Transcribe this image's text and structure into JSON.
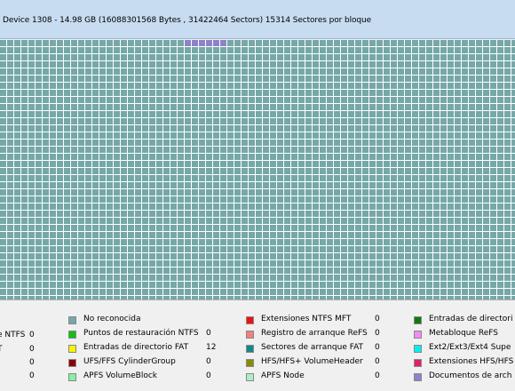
{
  "header": {
    "info": "Device 1308 - 14.98 GB (16088301568 Bytes , 31422464 Sectors) 15314 Sectores por bloque"
  },
  "map": {
    "default_color": "#76a8a8",
    "highlight_color": "#8b83c9",
    "highlight": {
      "row": 0,
      "col_start": 26,
      "col_end": 31
    }
  },
  "legend": {
    "col0": [
      {
        "label": "e NTFS",
        "count": "0"
      },
      {
        "label": "T",
        "count": "0"
      },
      {
        "label": "",
        "count": "0"
      },
      {
        "label": "",
        "count": "0"
      }
    ],
    "col1": [
      {
        "label": "No reconocida",
        "count": "",
        "color": "#76a8a8",
        "icon": "swatch"
      },
      {
        "label": "Puntos de restauración NTFS",
        "count": "0",
        "color": "#11c011",
        "icon": "swatch"
      },
      {
        "label": "Entradas de directorio FAT",
        "count": "12",
        "color": "#f5f500",
        "icon": "swatch"
      },
      {
        "label": "UFS/FFS CylinderGroup",
        "count": "0",
        "color": "#8b0000",
        "icon": "swatch"
      },
      {
        "label": "APFS VolumeBlock",
        "count": "0",
        "color": "#88f0a8",
        "icon": "swatch"
      }
    ],
    "col2": [
      {
        "label": "Extensiones NTFS MFT",
        "count": "0",
        "color": "#ee1111",
        "icon": "swatch"
      },
      {
        "label": "Registro de arranque ReFS",
        "count": "0",
        "color": "#f08080",
        "icon": "swatch"
      },
      {
        "label": "Sectores de arranque FAT",
        "count": "0",
        "color": "#138888",
        "icon": "swatch"
      },
      {
        "label": "HFS/HFS+ VolumeHeader",
        "count": "0",
        "color": "#8b8b00",
        "icon": "swatch"
      },
      {
        "label": "APFS Node",
        "count": "0",
        "color": "#a8f0c8",
        "icon": "swatch"
      }
    ],
    "col3": [
      {
        "label": "Entradas de directori",
        "color": "#0f7a0f",
        "icon": "swatch"
      },
      {
        "label": "Metabloque ReFS",
        "color": "#f08cf0",
        "icon": "swatch"
      },
      {
        "label": "Ext2/Ext3/Ext4 Supe",
        "color": "#00f0f0",
        "icon": "swatch"
      },
      {
        "label": "Extensiones HFS/HFS",
        "color": "#e0206a",
        "icon": "swatch"
      },
      {
        "label": "Documentos de arch",
        "color": "#8b83c9",
        "icon": "swatch"
      }
    ]
  }
}
